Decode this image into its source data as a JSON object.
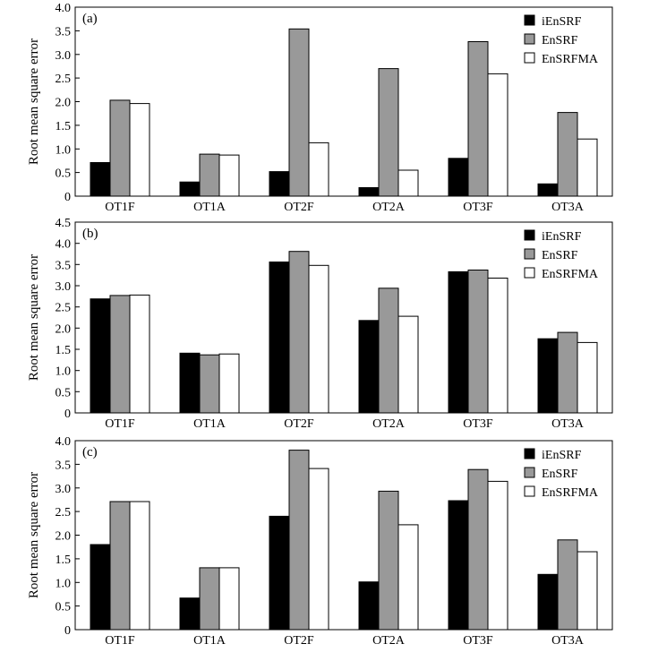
{
  "colors": {
    "iEnSRF": "#000000",
    "EnSRF": "#999999",
    "EnSRFMA": "#ffffff",
    "axis": "#000000"
  },
  "chart_data": [
    {
      "type": "bar",
      "panel_label": "(a)",
      "ylabel": "Root mean square error",
      "xlabel": "",
      "ylim": [
        0,
        4
      ],
      "yticks": [
        "0",
        "0.5",
        "1.0",
        "1.5",
        "2.0",
        "2.5",
        "3.0",
        "3.5",
        "4.0"
      ],
      "categories": [
        "OT1F",
        "OT1A",
        "OT2F",
        "OT2A",
        "OT3F",
        "OT3A"
      ],
      "legend_position": "top-right",
      "series": [
        {
          "name": "iEnSRF",
          "values": [
            0.71,
            0.3,
            0.52,
            0.18,
            0.8,
            0.26
          ]
        },
        {
          "name": "EnSRF",
          "values": [
            2.03,
            0.89,
            3.54,
            2.7,
            3.27,
            1.77
          ]
        },
        {
          "name": "EnSRFMA",
          "values": [
            1.96,
            0.87,
            1.13,
            0.55,
            2.59,
            1.21
          ]
        }
      ]
    },
    {
      "type": "bar",
      "panel_label": "(b)",
      "ylabel": "Root mean square error",
      "xlabel": "",
      "ylim": [
        0,
        4.5
      ],
      "yticks": [
        "0",
        "0.5",
        "1.0",
        "1.5",
        "2.0",
        "2.5",
        "3.0",
        "3.5",
        "4.0",
        "4.5"
      ],
      "categories": [
        "OT1F",
        "OT1A",
        "OT2F",
        "OT2A",
        "OT3F",
        "OT3A"
      ],
      "legend_position": "top-right",
      "series": [
        {
          "name": "iEnSRF",
          "values": [
            2.69,
            1.41,
            3.56,
            2.18,
            3.33,
            1.75
          ]
        },
        {
          "name": "EnSRF",
          "values": [
            2.77,
            1.37,
            3.81,
            2.94,
            3.37,
            1.9
          ]
        },
        {
          "name": "EnSRFMA",
          "values": [
            2.78,
            1.39,
            3.48,
            2.28,
            3.18,
            1.66
          ]
        }
      ]
    },
    {
      "type": "bar",
      "panel_label": "(c)",
      "ylabel": "Root mean square error",
      "xlabel": "",
      "ylim": [
        0,
        4
      ],
      "yticks": [
        "0",
        "0.5",
        "1.0",
        "1.5",
        "2.0",
        "2.5",
        "3.0",
        "3.5",
        "4.0"
      ],
      "categories": [
        "OT1F",
        "OT1A",
        "OT2F",
        "OT2A",
        "OT3F",
        "OT3A"
      ],
      "legend_position": "top-right",
      "series": [
        {
          "name": "iEnSRF",
          "values": [
            1.8,
            0.67,
            2.4,
            1.01,
            2.73,
            1.17
          ]
        },
        {
          "name": "EnSRF",
          "values": [
            2.71,
            1.31,
            3.8,
            2.93,
            3.39,
            1.9
          ]
        },
        {
          "name": "EnSRFMA",
          "values": [
            2.71,
            1.31,
            3.41,
            2.22,
            3.14,
            1.65
          ]
        }
      ]
    }
  ]
}
